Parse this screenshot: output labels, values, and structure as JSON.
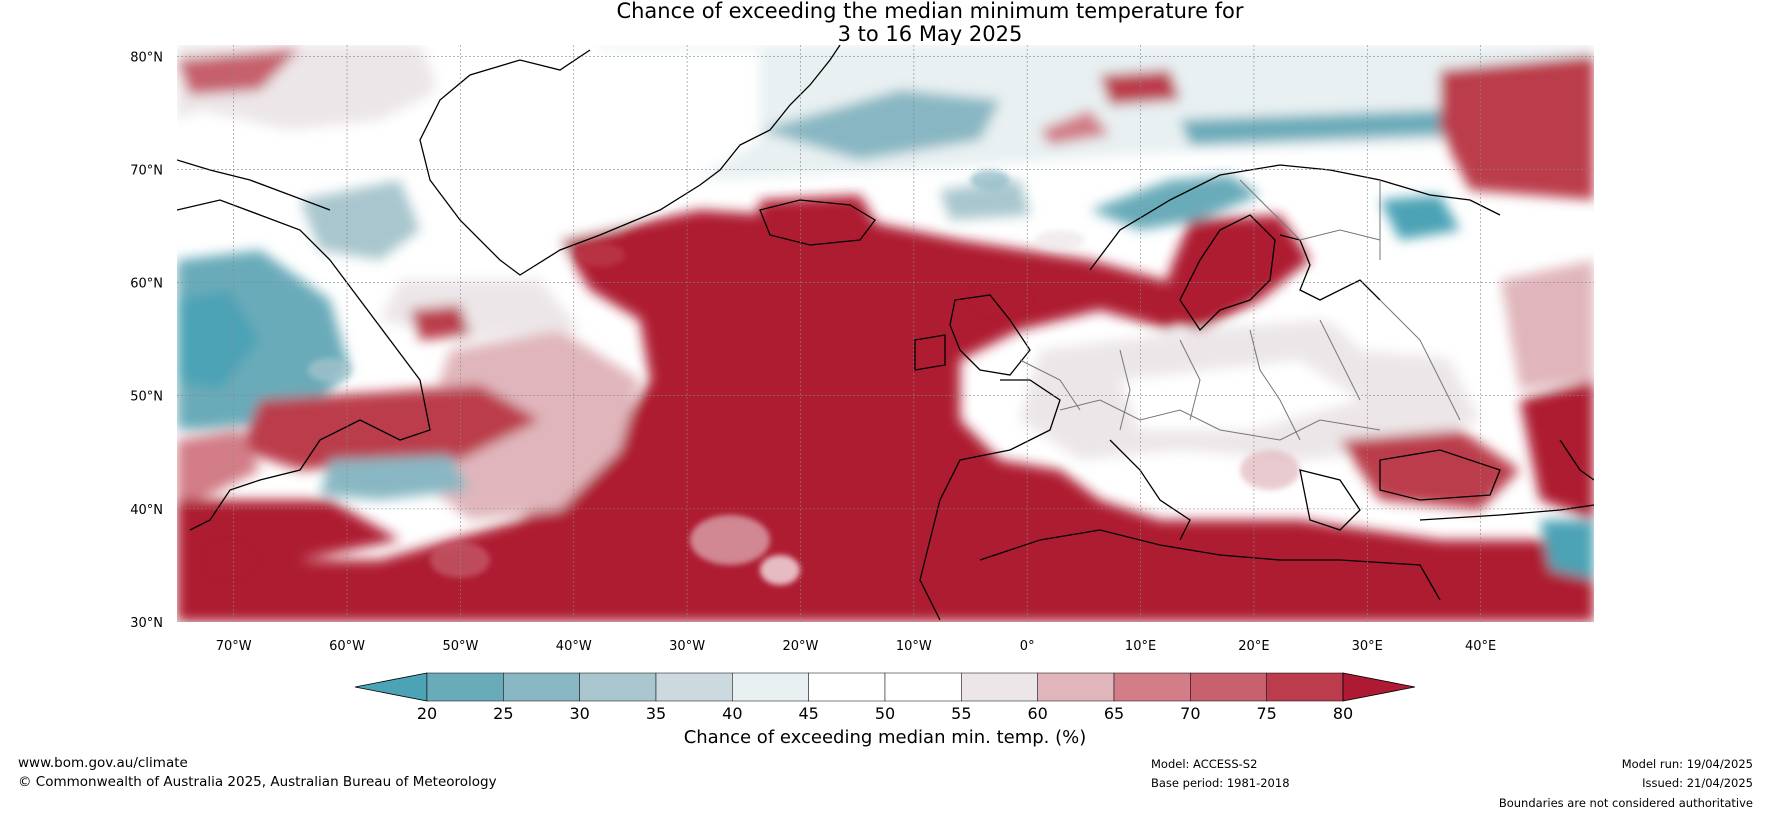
{
  "title": {
    "line1": "Chance of exceeding the median minimum temperature for",
    "line2": "3 to 16 May 2025"
  },
  "map": {
    "lon_range": [
      -75,
      50
    ],
    "lat_range": [
      30,
      81
    ],
    "lat_labels": [
      "30°N",
      "40°N",
      "50°N",
      "60°N",
      "70°N",
      "80°N"
    ],
    "lon_labels": [
      "70°W",
      "60°W",
      "50°W",
      "40°W",
      "30°W",
      "20°W",
      "10°W",
      "0°",
      "10°E",
      "20°E",
      "30°E",
      "40°E"
    ]
  },
  "colorbar": {
    "ticks": [
      "20",
      "25",
      "30",
      "35",
      "40",
      "45",
      "50",
      "55",
      "60",
      "65",
      "70",
      "75",
      "80"
    ],
    "colors": [
      "#4ba3b5",
      "#6aabb9",
      "#88b7c3",
      "#a9c6ce",
      "#ccd9de",
      "#e8f0f2",
      "#ffffff",
      "#ffffff",
      "#ece6e8",
      "#e0b6bc",
      "#d27d87",
      "#c6616d",
      "#bb3c4c",
      "#ae1a33"
    ],
    "label": "Chance of exceeding median min. temp. (%)"
  },
  "footer": {
    "url": "www.bom.gov.au/climate",
    "copyright": "© Commonwealth of Australia 2025, Australian Bureau of Meteorology",
    "model": "Model: ACCESS-S2",
    "base_period": "Base period: 1981-2018",
    "model_run": "Model run: 19/04/2025",
    "issued": "Issued: 21/04/2025",
    "disclaimer": "Boundaries are not considered authoritative"
  }
}
